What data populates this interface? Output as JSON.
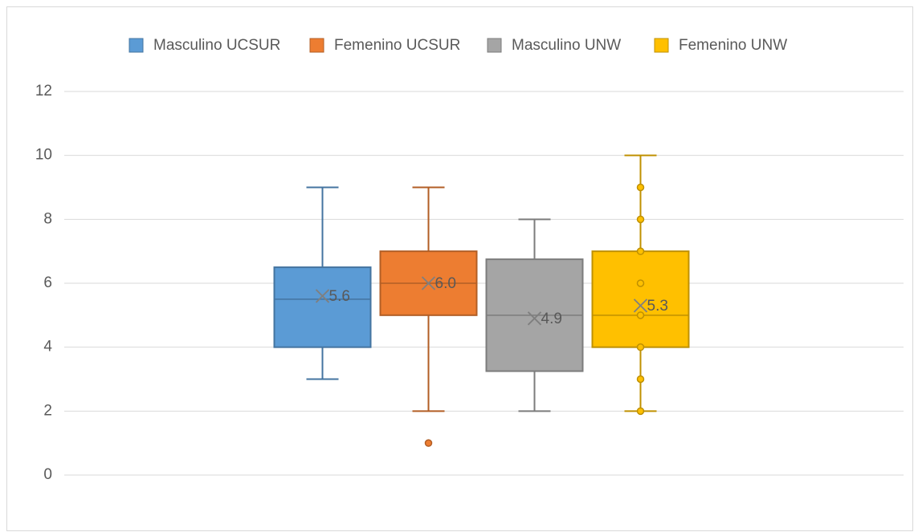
{
  "chart_data": {
    "type": "box",
    "ylim": [
      0,
      12
    ],
    "yticks": [
      0,
      2,
      4,
      6,
      8,
      10,
      12
    ],
    "grid": true,
    "legend": "top",
    "series": [
      {
        "name": "Masculino UCSUR",
        "color": "#5b9bd5",
        "min": 3,
        "q1": 4,
        "median": 5.5,
        "q3": 6.5,
        "max": 9,
        "mean": 5.6
      },
      {
        "name": "Femenino UCSUR",
        "color": "#ed7d31",
        "min": 2,
        "q1": 5,
        "median": 6,
        "q3": 7,
        "max": 9,
        "mean": 6,
        "mean_label": "6.0",
        "outliers": [
          1
        ]
      },
      {
        "name": "Masculino UNW",
        "color": "#a5a5a5",
        "min": 2,
        "q1": 3.25,
        "median": 5,
        "q3": 6.75,
        "max": 8,
        "mean": 4.9
      },
      {
        "name": "Femenino UNW",
        "color": "#ffc000",
        "min": 2,
        "q1": 4,
        "median": 5,
        "q3": 7,
        "max": 10,
        "mean": 5.3,
        "points": [
          2,
          3,
          4,
          5,
          6,
          7,
          8,
          9
        ]
      }
    ]
  }
}
